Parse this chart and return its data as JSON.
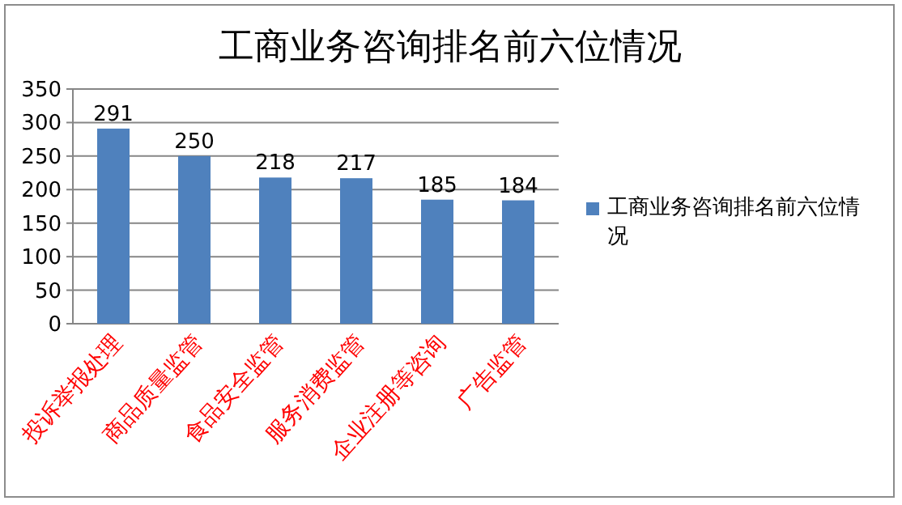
{
  "chart_data": {
    "type": "bar",
    "title": "工商业务咨询排名前六位情况",
    "categories": [
      "投诉举报处理",
      "商品质量监管",
      "食品安全监管",
      "服务消费监管",
      "企业注册等咨询",
      "广告监管"
    ],
    "series": [
      {
        "name": "工商业务咨询排名前六位情况",
        "color": "#4f81bd",
        "values": [
          291,
          250,
          218,
          217,
          185,
          184
        ]
      }
    ],
    "ylim": [
      0,
      350
    ],
    "yticks": [
      0,
      50,
      100,
      150,
      200,
      250,
      300,
      350
    ],
    "grid": "y",
    "legend": "right",
    "data_labels": true
  }
}
